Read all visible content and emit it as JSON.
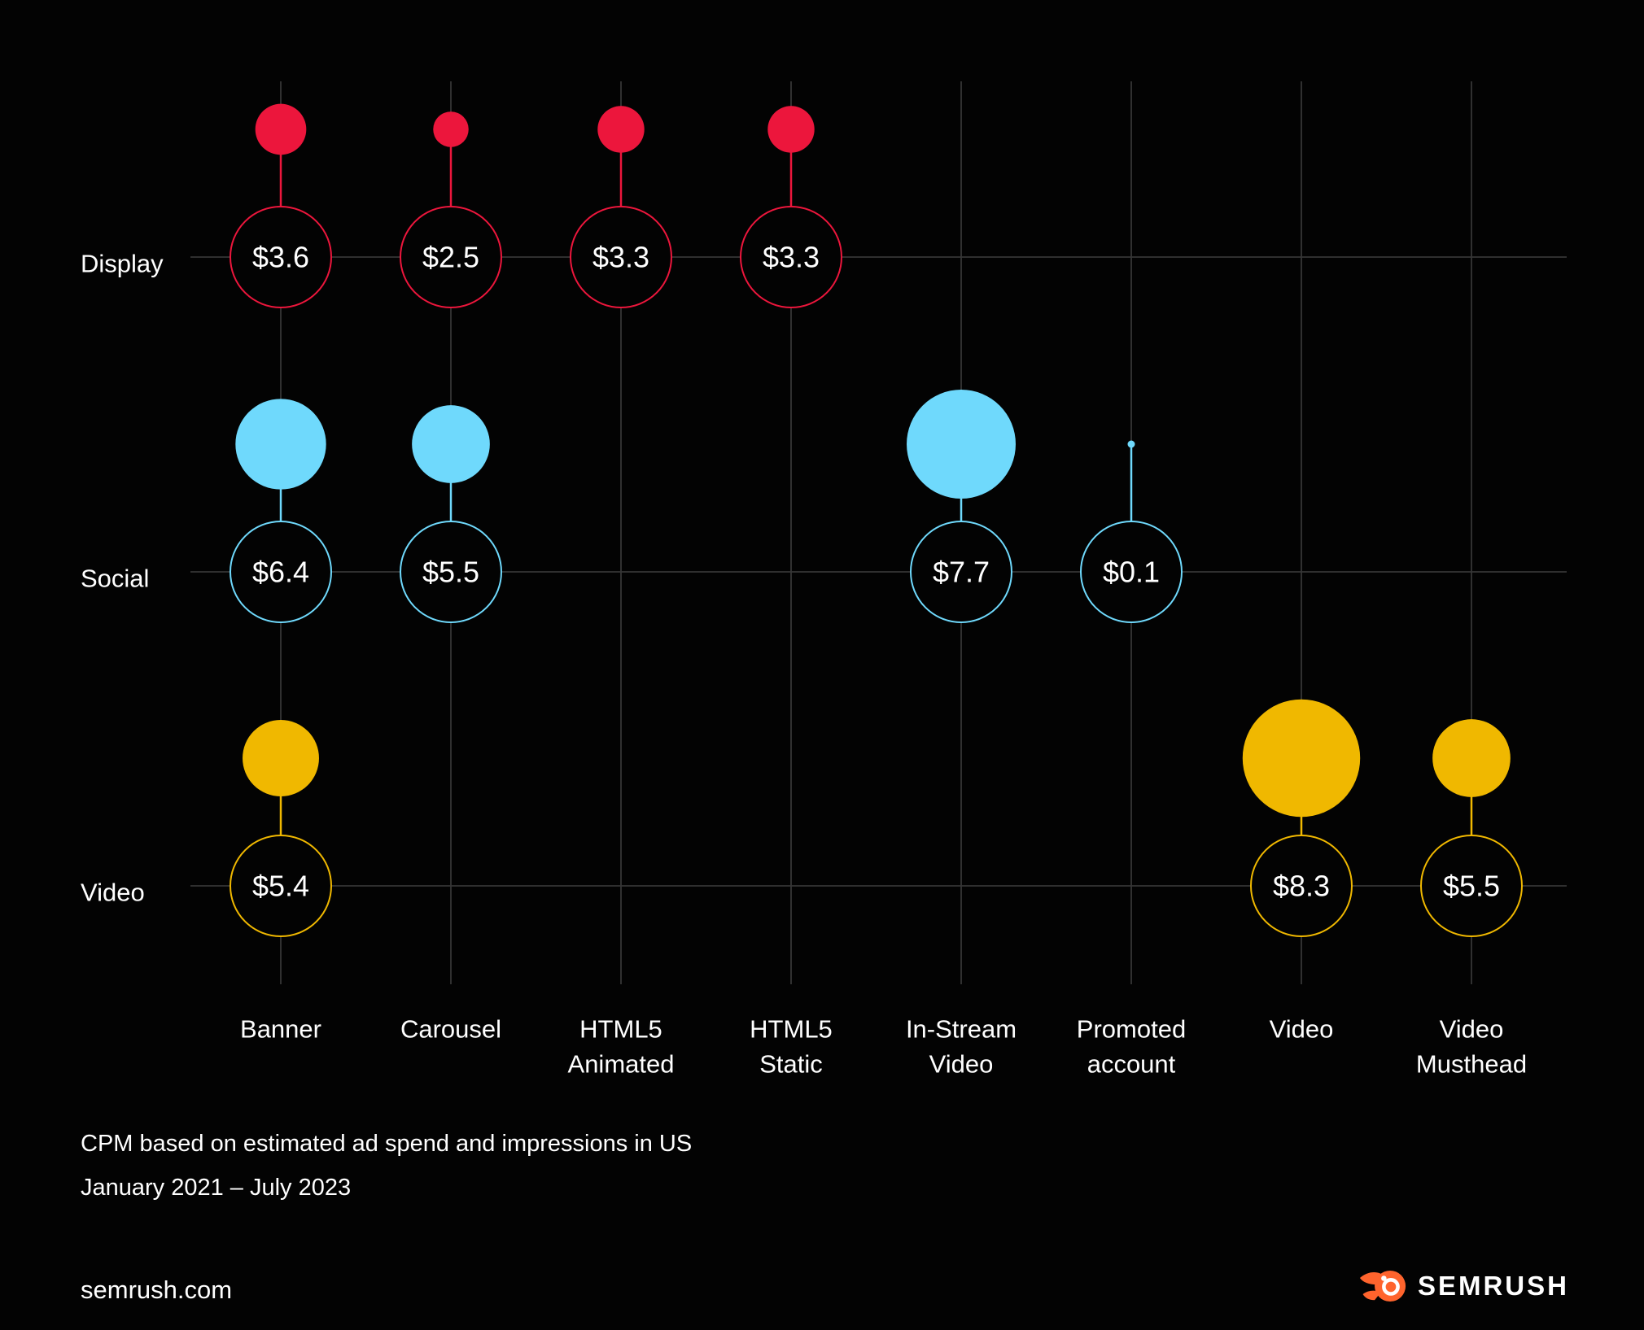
{
  "chart_data": {
    "type": "scatter",
    "variant": "bubble-matrix",
    "title": "",
    "unit": "CPM (USD)",
    "value_prefix": "$",
    "grid": true,
    "legend_position": "none",
    "rows": [
      "Display",
      "Social",
      "Video"
    ],
    "columns": [
      "Banner",
      "Carousel",
      "HTML5 Animated",
      "HTML5 Static",
      "In-Stream Video",
      "Promoted account",
      "Video",
      "Video Musthead"
    ],
    "column_label_lines": [
      [
        "Banner"
      ],
      [
        "Carousel"
      ],
      [
        "HTML5",
        "Animated"
      ],
      [
        "HTML5",
        "Static"
      ],
      [
        "In-Stream",
        "Video"
      ],
      [
        "Promoted",
        "account"
      ],
      [
        "Video"
      ],
      [
        "Video",
        "Musthead"
      ]
    ],
    "series": [
      {
        "name": "Display",
        "color": "#EC163C",
        "points": [
          {
            "column": "Banner",
            "value": 3.6,
            "label": "$3.6"
          },
          {
            "column": "Carousel",
            "value": 2.5,
            "label": "$2.5"
          },
          {
            "column": "HTML5 Animated",
            "value": 3.3,
            "label": "$3.3"
          },
          {
            "column": "HTML5 Static",
            "value": 3.3,
            "label": "$3.3"
          }
        ]
      },
      {
        "name": "Social",
        "color": "#6FD9FC",
        "points": [
          {
            "column": "Banner",
            "value": 6.4,
            "label": "$6.4"
          },
          {
            "column": "Carousel",
            "value": 5.5,
            "label": "$5.5"
          },
          {
            "column": "In-Stream Video",
            "value": 7.7,
            "label": "$7.7"
          },
          {
            "column": "Promoted account",
            "value": 0.1,
            "label": "$0.1"
          }
        ]
      },
      {
        "name": "Video",
        "color": "#F0B800",
        "points": [
          {
            "column": "Banner",
            "value": 5.4,
            "label": "$5.4"
          },
          {
            "column": "Video",
            "value": 8.3,
            "label": "$8.3"
          },
          {
            "column": "Video Musthead",
            "value": 5.5,
            "label": "$5.5"
          }
        ]
      }
    ]
  },
  "footnote": {
    "line1": "CPM based on estimated ad spend and impressions in US",
    "line2": "January 2021 – July 2023"
  },
  "footer": {
    "source": "semrush.com",
    "brand": "SEMRUSH"
  },
  "colors": {
    "background": "#030303",
    "grid": "#363636",
    "text": "#FFFFFF",
    "display_red": "#EC163C",
    "social_blue": "#6FD9FC",
    "video_yellow": "#F0B800",
    "logo_orange": "#FF642D"
  }
}
